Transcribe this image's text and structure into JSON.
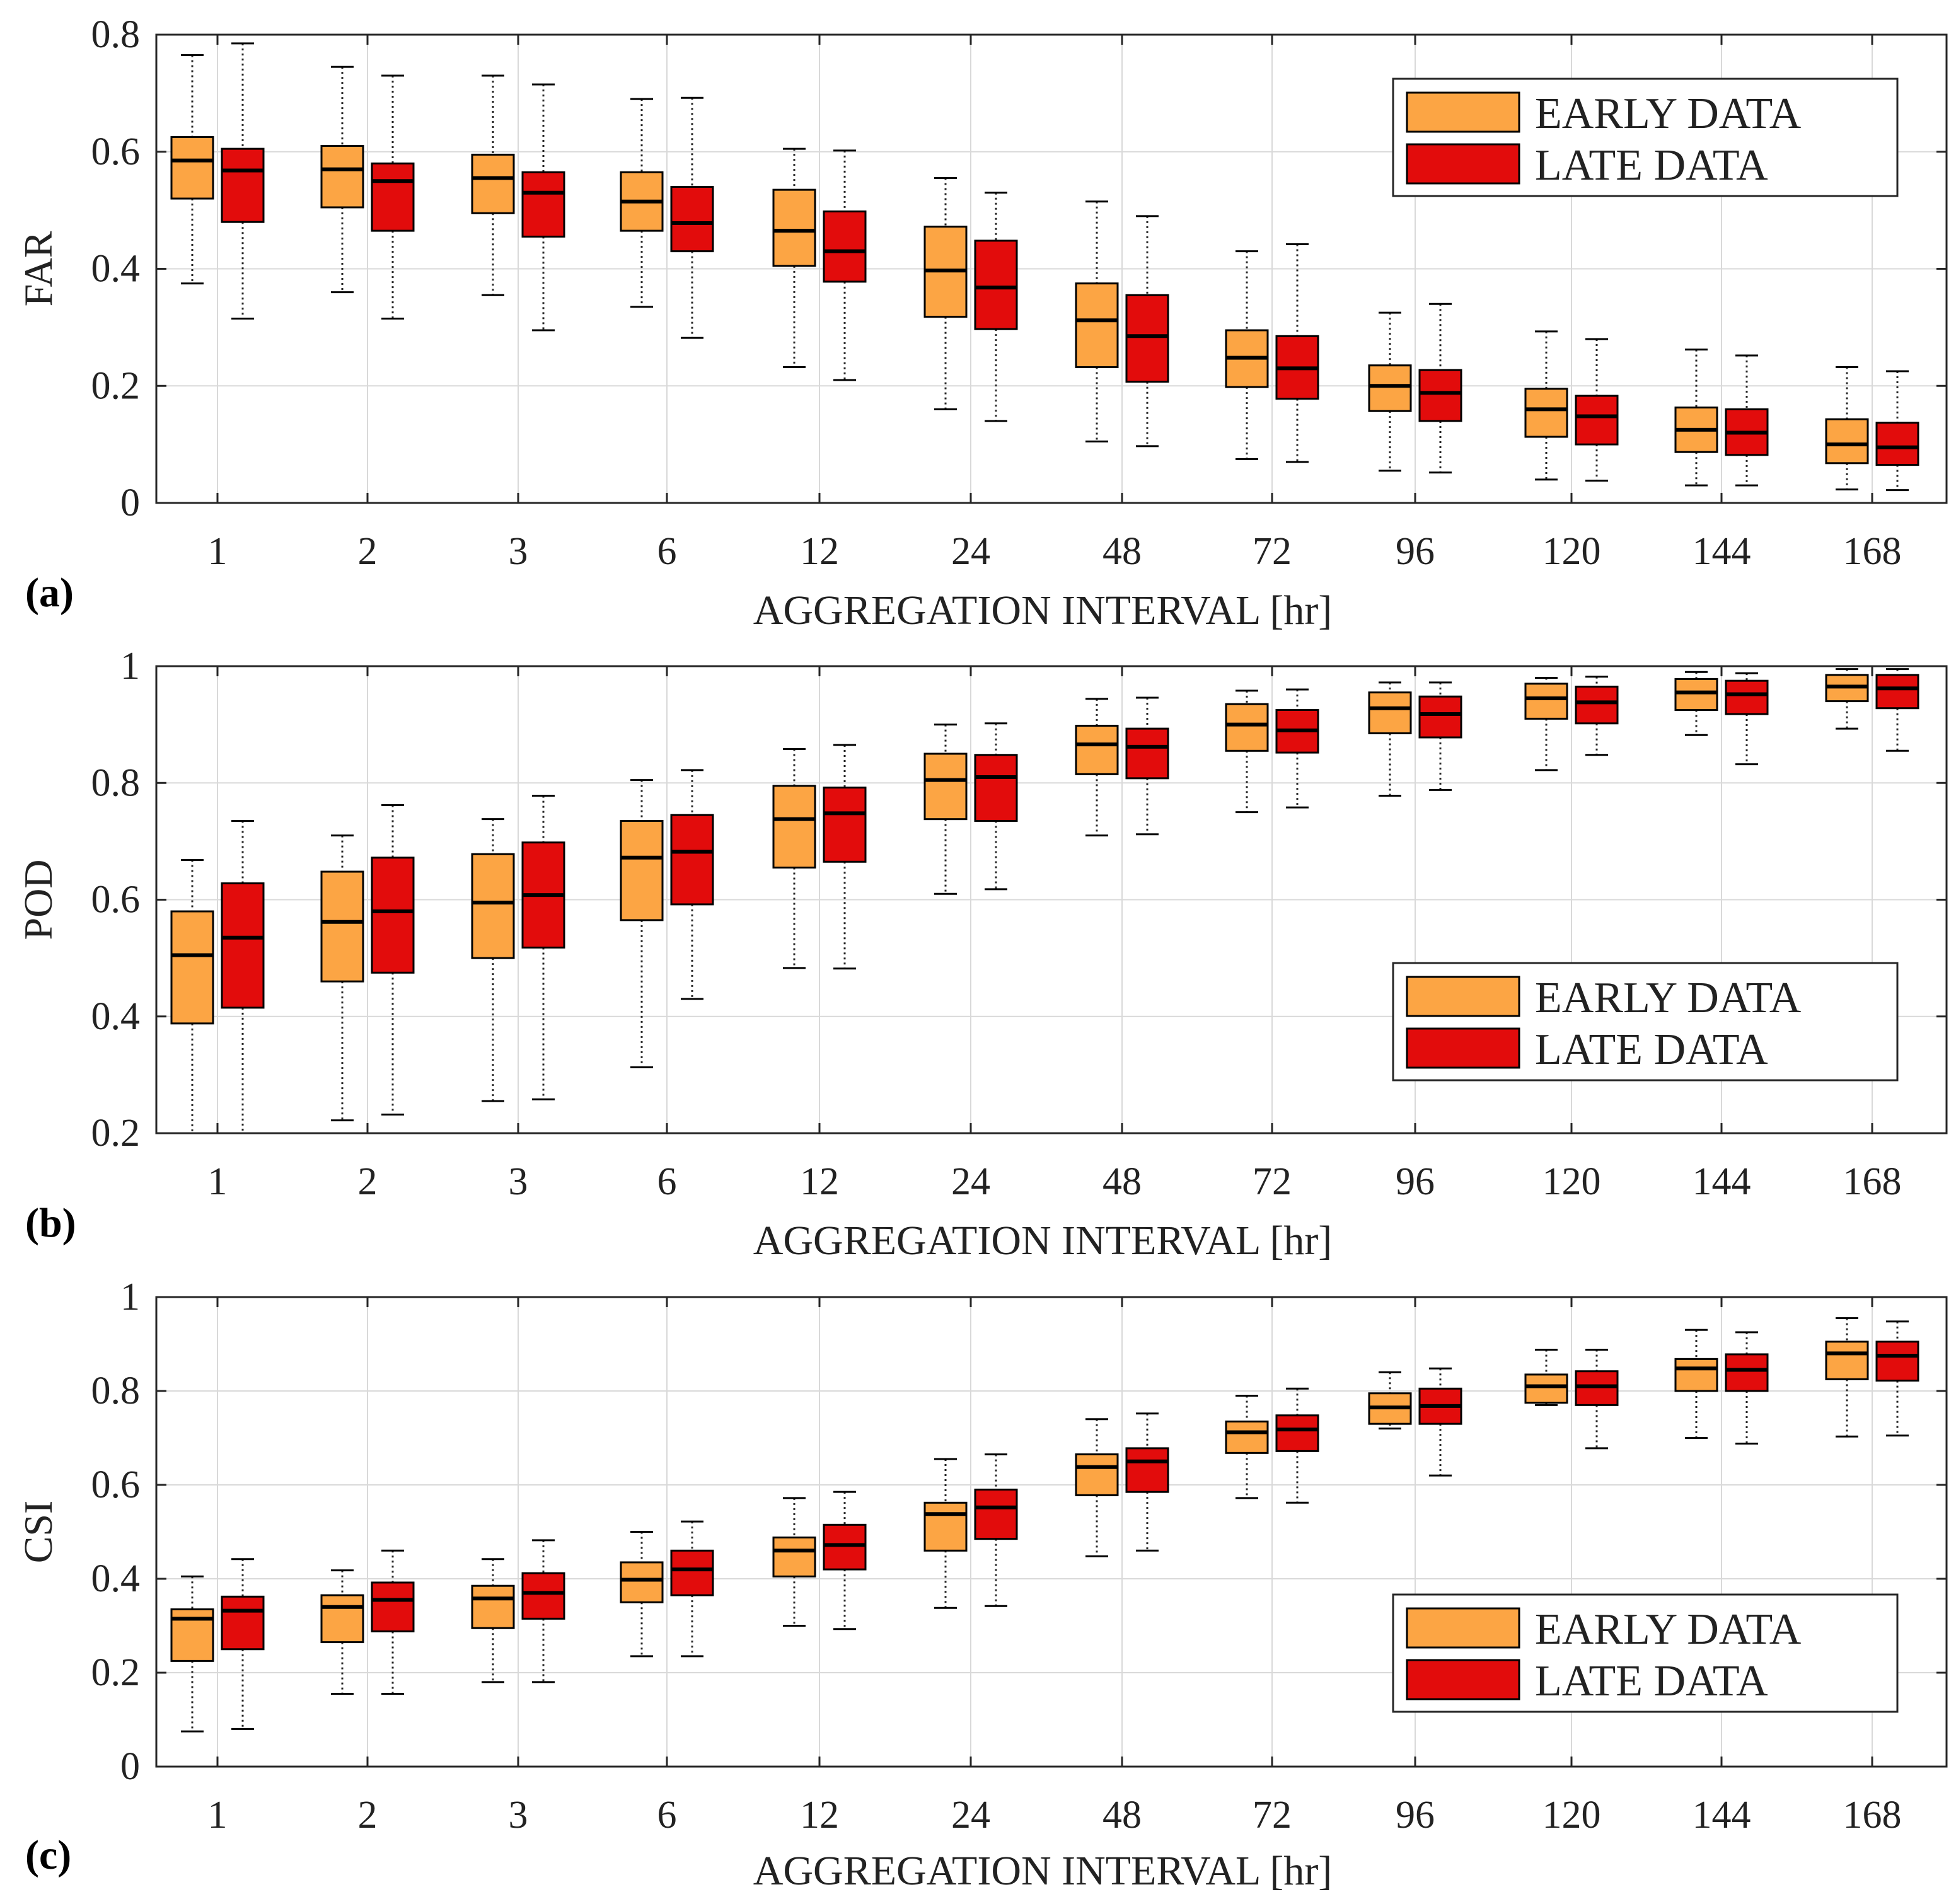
{
  "colors": {
    "early": "#fca544",
    "late": "#e20c0c",
    "grid": "#d9d9d9",
    "axis": "#262626",
    "median": "#000000"
  },
  "chart_data": [
    {
      "type": "box",
      "panel_label": "(a)",
      "ylabel": "FAR",
      "xlabel": "AGGREGATION INTERVAL [hr]",
      "categories": [
        "1",
        "2",
        "3",
        "6",
        "12",
        "24",
        "48",
        "72",
        "96",
        "120",
        "144",
        "168"
      ],
      "ylim": [
        0,
        0.8
      ],
      "yticks": [
        0,
        0.2,
        0.4,
        0.6,
        0.8
      ],
      "ytick_labels": [
        "0",
        "0.2",
        "0.4",
        "0.6",
        "0.8"
      ],
      "grid": true,
      "legend": [
        "EARLY DATA",
        "LATE DATA"
      ],
      "legend_position": "top-right",
      "series": [
        {
          "name": "EARLY DATA",
          "color_key": "early",
          "boxes": [
            {
              "whisker_low": 0.375,
              "q1": 0.52,
              "median": 0.585,
              "q3": 0.625,
              "whisker_high": 0.765
            },
            {
              "whisker_low": 0.36,
              "q1": 0.505,
              "median": 0.57,
              "q3": 0.61,
              "whisker_high": 0.745
            },
            {
              "whisker_low": 0.355,
              "q1": 0.495,
              "median": 0.555,
              "q3": 0.595,
              "whisker_high": 0.73
            },
            {
              "whisker_low": 0.335,
              "q1": 0.465,
              "median": 0.515,
              "q3": 0.565,
              "whisker_high": 0.69
            },
            {
              "whisker_low": 0.232,
              "q1": 0.405,
              "median": 0.465,
              "q3": 0.535,
              "whisker_high": 0.605
            },
            {
              "whisker_low": 0.16,
              "q1": 0.318,
              "median": 0.397,
              "q3": 0.472,
              "whisker_high": 0.555
            },
            {
              "whisker_low": 0.105,
              "q1": 0.232,
              "median": 0.312,
              "q3": 0.375,
              "whisker_high": 0.515
            },
            {
              "whisker_low": 0.075,
              "q1": 0.198,
              "median": 0.248,
              "q3": 0.295,
              "whisker_high": 0.43
            },
            {
              "whisker_low": 0.055,
              "q1": 0.157,
              "median": 0.2,
              "q3": 0.235,
              "whisker_high": 0.325
            },
            {
              "whisker_low": 0.04,
              "q1": 0.113,
              "median": 0.16,
              "q3": 0.195,
              "whisker_high": 0.293
            },
            {
              "whisker_low": 0.03,
              "q1": 0.087,
              "median": 0.125,
              "q3": 0.163,
              "whisker_high": 0.262
            },
            {
              "whisker_low": 0.023,
              "q1": 0.068,
              "median": 0.1,
              "q3": 0.143,
              "whisker_high": 0.232
            }
          ]
        },
        {
          "name": "LATE DATA",
          "color_key": "late",
          "boxes": [
            {
              "whisker_low": 0.315,
              "q1": 0.48,
              "median": 0.568,
              "q3": 0.605,
              "whisker_high": 0.785
            },
            {
              "whisker_low": 0.315,
              "q1": 0.465,
              "median": 0.55,
              "q3": 0.58,
              "whisker_high": 0.73
            },
            {
              "whisker_low": 0.295,
              "q1": 0.455,
              "median": 0.53,
              "q3": 0.565,
              "whisker_high": 0.715
            },
            {
              "whisker_low": 0.282,
              "q1": 0.43,
              "median": 0.478,
              "q3": 0.54,
              "whisker_high": 0.692
            },
            {
              "whisker_low": 0.21,
              "q1": 0.378,
              "median": 0.43,
              "q3": 0.498,
              "whisker_high": 0.602
            },
            {
              "whisker_low": 0.14,
              "q1": 0.297,
              "median": 0.368,
              "q3": 0.448,
              "whisker_high": 0.53
            },
            {
              "whisker_low": 0.097,
              "q1": 0.207,
              "median": 0.285,
              "q3": 0.355,
              "whisker_high": 0.49
            },
            {
              "whisker_low": 0.07,
              "q1": 0.178,
              "median": 0.23,
              "q3": 0.285,
              "whisker_high": 0.442
            },
            {
              "whisker_low": 0.052,
              "q1": 0.14,
              "median": 0.188,
              "q3": 0.227,
              "whisker_high": 0.34
            },
            {
              "whisker_low": 0.038,
              "q1": 0.1,
              "median": 0.148,
              "q3": 0.183,
              "whisker_high": 0.28
            },
            {
              "whisker_low": 0.03,
              "q1": 0.082,
              "median": 0.12,
              "q3": 0.16,
              "whisker_high": 0.252
            },
            {
              "whisker_low": 0.022,
              "q1": 0.065,
              "median": 0.095,
              "q3": 0.137,
              "whisker_high": 0.225
            }
          ]
        }
      ]
    },
    {
      "type": "box",
      "panel_label": "(b)",
      "ylabel": "POD",
      "xlabel": "AGGREGATION INTERVAL [hr]",
      "categories": [
        "1",
        "2",
        "3",
        "6",
        "12",
        "24",
        "48",
        "72",
        "96",
        "120",
        "144",
        "168"
      ],
      "ylim": [
        0.2,
        1
      ],
      "yticks": [
        0.2,
        0.4,
        0.6,
        0.8,
        1
      ],
      "ytick_labels": [
        "0.2",
        "0.4",
        "0.6",
        "0.8",
        "1"
      ],
      "grid": true,
      "legend": [
        "EARLY DATA",
        "LATE DATA"
      ],
      "legend_position": "lower-right",
      "series": [
        {
          "name": "EARLY DATA",
          "color_key": "early",
          "boxes": [
            {
              "whisker_low": 0.2,
              "q1": 0.388,
              "median": 0.505,
              "q3": 0.58,
              "whisker_high": 0.668
            },
            {
              "whisker_low": 0.222,
              "q1": 0.46,
              "median": 0.562,
              "q3": 0.648,
              "whisker_high": 0.71
            },
            {
              "whisker_low": 0.255,
              "q1": 0.5,
              "median": 0.595,
              "q3": 0.678,
              "whisker_high": 0.738
            },
            {
              "whisker_low": 0.313,
              "q1": 0.565,
              "median": 0.672,
              "q3": 0.735,
              "whisker_high": 0.805
            },
            {
              "whisker_low": 0.483,
              "q1": 0.655,
              "median": 0.738,
              "q3": 0.795,
              "whisker_high": 0.858
            },
            {
              "whisker_low": 0.61,
              "q1": 0.738,
              "median": 0.805,
              "q3": 0.85,
              "whisker_high": 0.9
            },
            {
              "whisker_low": 0.71,
              "q1": 0.815,
              "median": 0.866,
              "q3": 0.898,
              "whisker_high": 0.944
            },
            {
              "whisker_low": 0.75,
              "q1": 0.855,
              "median": 0.9,
              "q3": 0.935,
              "whisker_high": 0.958
            },
            {
              "whisker_low": 0.778,
              "q1": 0.885,
              "median": 0.928,
              "q3": 0.955,
              "whisker_high": 0.972
            },
            {
              "whisker_low": 0.822,
              "q1": 0.91,
              "median": 0.945,
              "q3": 0.97,
              "whisker_high": 0.98
            },
            {
              "whisker_low": 0.882,
              "q1": 0.925,
              "median": 0.955,
              "q3": 0.978,
              "whisker_high": 0.99
            },
            {
              "whisker_low": 0.893,
              "q1": 0.94,
              "median": 0.965,
              "q3": 0.985,
              "whisker_high": 0.995
            }
          ]
        },
        {
          "name": "LATE DATA",
          "color_key": "late",
          "boxes": [
            {
              "whisker_low": 0.2,
              "q1": 0.415,
              "median": 0.535,
              "q3": 0.628,
              "whisker_high": 0.735
            },
            {
              "whisker_low": 0.232,
              "q1": 0.475,
              "median": 0.58,
              "q3": 0.672,
              "whisker_high": 0.762
            },
            {
              "whisker_low": 0.258,
              "q1": 0.518,
              "median": 0.608,
              "q3": 0.698,
              "whisker_high": 0.778
            },
            {
              "whisker_low": 0.43,
              "q1": 0.592,
              "median": 0.682,
              "q3": 0.745,
              "whisker_high": 0.822
            },
            {
              "whisker_low": 0.482,
              "q1": 0.665,
              "median": 0.748,
              "q3": 0.792,
              "whisker_high": 0.865
            },
            {
              "whisker_low": 0.618,
              "q1": 0.735,
              "median": 0.81,
              "q3": 0.848,
              "whisker_high": 0.902
            },
            {
              "whisker_low": 0.712,
              "q1": 0.808,
              "median": 0.862,
              "q3": 0.893,
              "whisker_high": 0.946
            },
            {
              "whisker_low": 0.758,
              "q1": 0.852,
              "median": 0.89,
              "q3": 0.925,
              "whisker_high": 0.96
            },
            {
              "whisker_low": 0.788,
              "q1": 0.878,
              "median": 0.918,
              "q3": 0.948,
              "whisker_high": 0.972
            },
            {
              "whisker_low": 0.848,
              "q1": 0.902,
              "median": 0.938,
              "q3": 0.965,
              "whisker_high": 0.982
            },
            {
              "whisker_low": 0.832,
              "q1": 0.918,
              "median": 0.952,
              "q3": 0.975,
              "whisker_high": 0.988
            },
            {
              "whisker_low": 0.855,
              "q1": 0.928,
              "median": 0.962,
              "q3": 0.985,
              "whisker_high": 0.995
            }
          ]
        }
      ]
    },
    {
      "type": "box",
      "panel_label": "(c)",
      "ylabel": "CSI",
      "xlabel": "AGGREGATION INTERVAL [hr]",
      "categories": [
        "1",
        "2",
        "3",
        "6",
        "12",
        "24",
        "48",
        "72",
        "96",
        "120",
        "144",
        "168"
      ],
      "ylim": [
        0,
        1
      ],
      "yticks": [
        0,
        0.2,
        0.4,
        0.6,
        0.8,
        1
      ],
      "ytick_labels": [
        "0",
        "0.2",
        "0.4",
        "0.6",
        "0.8",
        "1"
      ],
      "grid": true,
      "legend": [
        "EARLY DATA",
        "LATE DATA"
      ],
      "legend_position": "lower-right",
      "series": [
        {
          "name": "EARLY DATA",
          "color_key": "early",
          "boxes": [
            {
              "whisker_low": 0.075,
              "q1": 0.225,
              "median": 0.315,
              "q3": 0.335,
              "whisker_high": 0.405
            },
            {
              "whisker_low": 0.155,
              "q1": 0.265,
              "median": 0.34,
              "q3": 0.365,
              "whisker_high": 0.418
            },
            {
              "whisker_low": 0.18,
              "q1": 0.295,
              "median": 0.358,
              "q3": 0.385,
              "whisker_high": 0.442
            },
            {
              "whisker_low": 0.235,
              "q1": 0.35,
              "median": 0.398,
              "q3": 0.435,
              "whisker_high": 0.5
            },
            {
              "whisker_low": 0.3,
              "q1": 0.405,
              "median": 0.46,
              "q3": 0.488,
              "whisker_high": 0.572
            },
            {
              "whisker_low": 0.338,
              "q1": 0.46,
              "median": 0.538,
              "q3": 0.562,
              "whisker_high": 0.655
            },
            {
              "whisker_low": 0.448,
              "q1": 0.578,
              "median": 0.638,
              "q3": 0.665,
              "whisker_high": 0.74
            },
            {
              "whisker_low": 0.572,
              "q1": 0.668,
              "median": 0.712,
              "q3": 0.735,
              "whisker_high": 0.79
            },
            {
              "whisker_low": 0.72,
              "q1": 0.73,
              "median": 0.765,
              "q3": 0.795,
              "whisker_high": 0.84
            },
            {
              "whisker_low": 0.77,
              "q1": 0.775,
              "median": 0.81,
              "q3": 0.835,
              "whisker_high": 0.888
            },
            {
              "whisker_low": 0.7,
              "q1": 0.8,
              "median": 0.848,
              "q3": 0.868,
              "whisker_high": 0.93
            },
            {
              "whisker_low": 0.703,
              "q1": 0.825,
              "median": 0.88,
              "q3": 0.905,
              "whisker_high": 0.955
            }
          ]
        },
        {
          "name": "LATE DATA",
          "color_key": "late",
          "boxes": [
            {
              "whisker_low": 0.08,
              "q1": 0.25,
              "median": 0.332,
              "q3": 0.362,
              "whisker_high": 0.442
            },
            {
              "whisker_low": 0.155,
              "q1": 0.288,
              "median": 0.355,
              "q3": 0.392,
              "whisker_high": 0.46
            },
            {
              "whisker_low": 0.18,
              "q1": 0.315,
              "median": 0.37,
              "q3": 0.412,
              "whisker_high": 0.482
            },
            {
              "whisker_low": 0.235,
              "q1": 0.365,
              "median": 0.42,
              "q3": 0.46,
              "whisker_high": 0.522
            },
            {
              "whisker_low": 0.293,
              "q1": 0.42,
              "median": 0.472,
              "q3": 0.515,
              "whisker_high": 0.585
            },
            {
              "whisker_low": 0.342,
              "q1": 0.485,
              "median": 0.552,
              "q3": 0.59,
              "whisker_high": 0.665
            },
            {
              "whisker_low": 0.46,
              "q1": 0.585,
              "median": 0.65,
              "q3": 0.678,
              "whisker_high": 0.752
            },
            {
              "whisker_low": 0.562,
              "q1": 0.672,
              "median": 0.718,
              "q3": 0.748,
              "whisker_high": 0.805
            },
            {
              "whisker_low": 0.62,
              "q1": 0.73,
              "median": 0.768,
              "q3": 0.805,
              "whisker_high": 0.848
            },
            {
              "whisker_low": 0.678,
              "q1": 0.77,
              "median": 0.81,
              "q3": 0.842,
              "whisker_high": 0.888
            },
            {
              "whisker_low": 0.688,
              "q1": 0.8,
              "median": 0.845,
              "q3": 0.878,
              "whisker_high": 0.925
            },
            {
              "whisker_low": 0.705,
              "q1": 0.822,
              "median": 0.875,
              "q3": 0.905,
              "whisker_high": 0.948
            }
          ]
        }
      ]
    }
  ]
}
